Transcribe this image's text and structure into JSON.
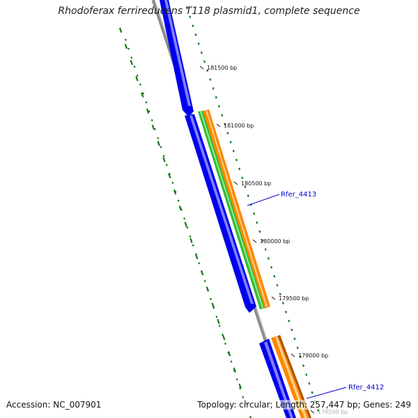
{
  "title": "Rhodoferax ferrireducens T118 plasmid1, complete sequence",
  "accession": "Accession: NC_007901",
  "summary": "Topology: circular; Length: 257,447 bp; Genes: 249",
  "colors": {
    "forward_cds": "#0000ee",
    "forward_cds_highlight": "#8a8aff",
    "backbone": "#888888",
    "green_feature": "#33bb33",
    "orange_feature": "#ff8800",
    "orange_highlight": "#ffd08a",
    "gc_dash": "#117711",
    "gene_label": "#0000cc"
  },
  "position_ticks": [
    {
      "label": "181500 bp"
    },
    {
      "label": "181000 bp"
    },
    {
      "label": "180500 bp"
    },
    {
      "label": "180000 bp"
    },
    {
      "label": "179500 bp"
    },
    {
      "label": "179000 bp"
    },
    {
      "label": "178500 bp"
    }
  ],
  "gene_labels": [
    {
      "label": "Rfer_4413"
    },
    {
      "label": "Rfer_4412"
    }
  ]
}
